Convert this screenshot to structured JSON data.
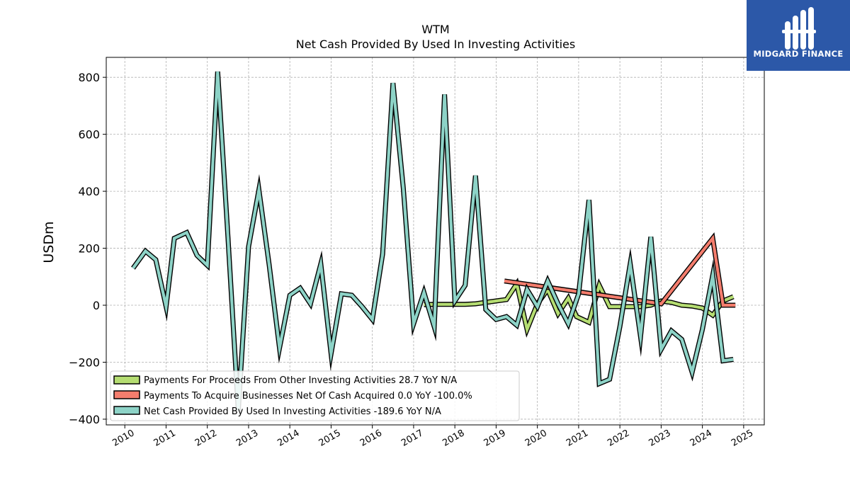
{
  "brand": {
    "name": "MIDGARD FINANCE",
    "color": "#2c58a8"
  },
  "chart_data": {
    "type": "line",
    "title": "WTM",
    "subtitle": "Net Cash Provided By Used In Investing Activities",
    "ylabel": "USDm",
    "xlabel": "",
    "ylim": [
      -420,
      870
    ],
    "xlim": [
      2009.55,
      2025.5
    ],
    "yticks": [
      -400,
      -200,
      0,
      200,
      400,
      600,
      800
    ],
    "ytick_labels": [
      "−400",
      "−200",
      "0",
      "200",
      "400",
      "600",
      "800"
    ],
    "xticks": [
      2010,
      2011,
      2012,
      2013,
      2014,
      2015,
      2016,
      2017,
      2018,
      2019,
      2020,
      2021,
      2022,
      2023,
      2024,
      2025
    ],
    "xtick_labels": [
      "2010",
      "2011",
      "2012",
      "2013",
      "2014",
      "2015",
      "2016",
      "2017",
      "2018",
      "2019",
      "2020",
      "2021",
      "2022",
      "2023",
      "2024",
      "2025"
    ],
    "grid": true,
    "legend_position": "lower-left",
    "series": [
      {
        "name": "Payments For Proceeds From Other Investing Activities",
        "legend": "Payments For Proceeds From Other Investing Activities  28.7 YoY N/A",
        "color": "#b5dd72",
        "points": [
          [
            2017.25,
            2
          ],
          [
            2017.5,
            3
          ],
          [
            2017.75,
            3
          ],
          [
            2018.0,
            3
          ],
          [
            2018.25,
            3
          ],
          [
            2018.5,
            5
          ],
          [
            2018.75,
            10
          ],
          [
            2019.0,
            15
          ],
          [
            2019.25,
            20
          ],
          [
            2019.5,
            75
          ],
          [
            2019.75,
            -85
          ],
          [
            2020.0,
            5
          ],
          [
            2020.25,
            55
          ],
          [
            2020.5,
            -30
          ],
          [
            2020.75,
            25
          ],
          [
            2020.95,
            -40
          ],
          [
            2021.25,
            -60
          ],
          [
            2021.5,
            70
          ],
          [
            2021.75,
            -5
          ],
          [
            2022.0,
            -5
          ],
          [
            2022.25,
            -5
          ],
          [
            2022.5,
            -5
          ],
          [
            2022.75,
            0
          ],
          [
            2023.0,
            15
          ],
          [
            2023.25,
            10
          ],
          [
            2023.5,
            0
          ],
          [
            2023.75,
            -3
          ],
          [
            2024.0,
            -10
          ],
          [
            2024.25,
            -35
          ],
          [
            2024.5,
            15
          ],
          [
            2024.75,
            30
          ]
        ]
      },
      {
        "name": "Payments To Acquire Businesses Net Of Cash Acquired",
        "legend": "Payments To Acquire Businesses Net Of Cash Acquired  0.0 YoY -100.0%",
        "color": "#f47d6d",
        "points": [
          [
            2019.2,
            85
          ],
          [
            2023.0,
            5
          ],
          [
            2024.25,
            235
          ],
          [
            2024.5,
            0
          ],
          [
            2024.8,
            0
          ]
        ]
      },
      {
        "name": "Net Cash Provided By Used In Investing Activities",
        "legend": "Net Cash Provided By Used In Investing Activities  -189.6 YoY N/A",
        "color": "#8dd3c7",
        "points": [
          [
            2010.2,
            130
          ],
          [
            2010.5,
            190
          ],
          [
            2010.75,
            160
          ],
          [
            2011.0,
            -5
          ],
          [
            2011.2,
            235
          ],
          [
            2011.5,
            255
          ],
          [
            2011.75,
            175
          ],
          [
            2012.0,
            140
          ],
          [
            2012.25,
            820
          ],
          [
            2012.5,
            240
          ],
          [
            2012.75,
            -370
          ],
          [
            2013.0,
            205
          ],
          [
            2013.25,
            405
          ],
          [
            2013.5,
            140
          ],
          [
            2013.75,
            -150
          ],
          [
            2014.0,
            35
          ],
          [
            2014.25,
            60
          ],
          [
            2014.5,
            5
          ],
          [
            2014.75,
            145
          ],
          [
            2015.0,
            -170
          ],
          [
            2015.25,
            40
          ],
          [
            2015.5,
            35
          ],
          [
            2015.75,
            -5
          ],
          [
            2016.0,
            -50
          ],
          [
            2016.25,
            180
          ],
          [
            2016.5,
            780
          ],
          [
            2016.75,
            410
          ],
          [
            2017.0,
            -65
          ],
          [
            2017.25,
            45
          ],
          [
            2017.5,
            -75
          ],
          [
            2017.75,
            740
          ],
          [
            2018.0,
            15
          ],
          [
            2018.25,
            70
          ],
          [
            2018.5,
            455
          ],
          [
            2018.75,
            -15
          ],
          [
            2019.0,
            -50
          ],
          [
            2019.25,
            -40
          ],
          [
            2019.5,
            -70
          ],
          [
            2019.75,
            55
          ],
          [
            2020.0,
            -5
          ],
          [
            2020.25,
            85
          ],
          [
            2020.5,
            5
          ],
          [
            2020.75,
            -65
          ],
          [
            2021.0,
            40
          ],
          [
            2021.25,
            370
          ],
          [
            2021.5,
            -275
          ],
          [
            2021.75,
            -260
          ],
          [
            2022.0,
            -75
          ],
          [
            2022.25,
            145
          ],
          [
            2022.5,
            -110
          ],
          [
            2022.75,
            240
          ],
          [
            2023.0,
            -155
          ],
          [
            2023.25,
            -90
          ],
          [
            2023.5,
            -120
          ],
          [
            2023.75,
            -235
          ],
          [
            2024.0,
            -85
          ],
          [
            2024.25,
            105
          ],
          [
            2024.5,
            -195
          ],
          [
            2024.75,
            -190
          ]
        ]
      }
    ]
  }
}
